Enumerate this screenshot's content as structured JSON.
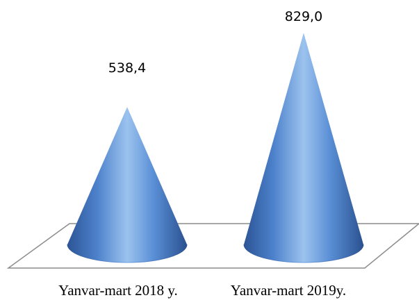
{
  "chart_data": {
    "type": "bar",
    "shape": "cone",
    "categories": [
      "Yanvar-mart 2018 y.",
      "Yanvar-mart 2019y."
    ],
    "values": [
      538.4,
      829.0
    ],
    "data_labels": [
      "538,4",
      "829,0"
    ],
    "title": "",
    "xlabel": "",
    "ylabel": "",
    "ylim": [
      0,
      900
    ],
    "grid": false,
    "legend": "none",
    "colors": {
      "cone_light": "#9cc3ee",
      "cone_mid": "#4f86cf",
      "cone_dark": "#274f8f",
      "floor": "#7f7f7f"
    }
  }
}
